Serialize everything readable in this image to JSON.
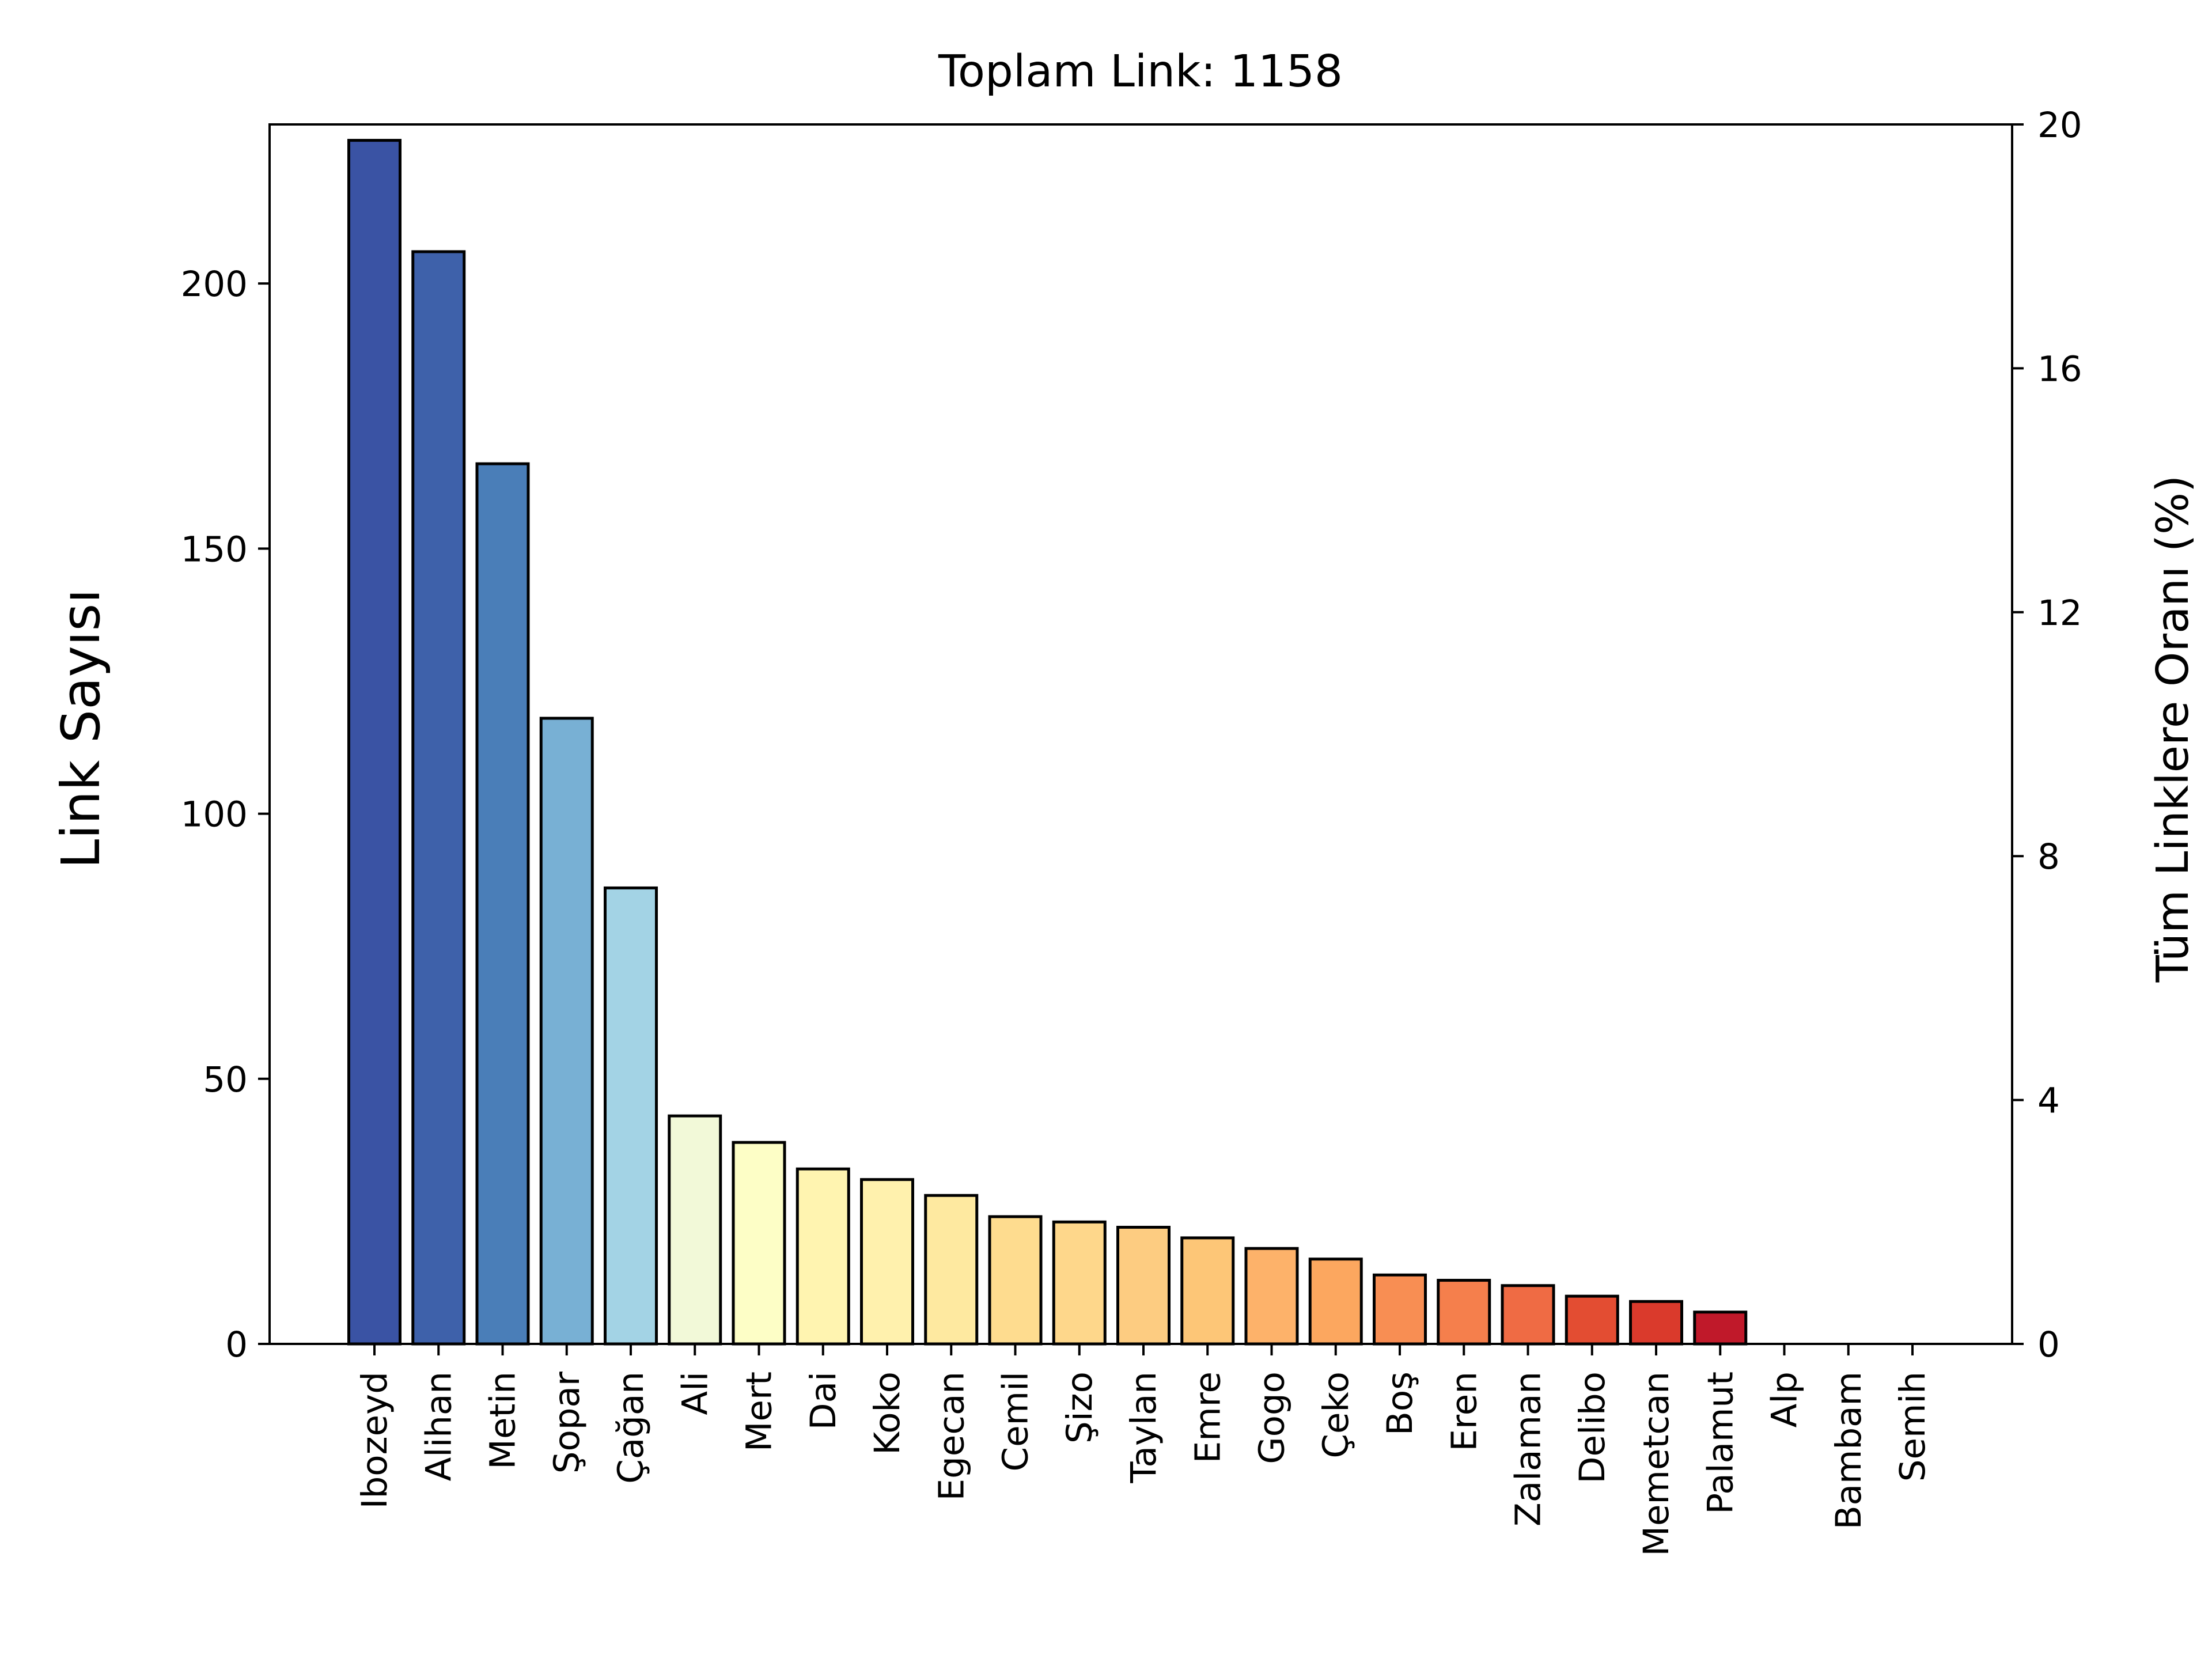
{
  "chart_data": {
    "type": "bar",
    "title": "Toplam Link: 1158",
    "ylabel": "Link Sayısı",
    "ylabel_right": "Tüm Linklere Oranı (%)",
    "xlabel": "",
    "ylim": [
      0,
      230
    ],
    "ylim_right": [
      0,
      20
    ],
    "yticks": [
      0,
      50,
      100,
      150,
      200
    ],
    "yticks_right": [
      0,
      4,
      8,
      12,
      16,
      20
    ],
    "grid": false,
    "legend": "none",
    "bar_edge_color": "#000000",
    "categories": [
      "Ibozeyd",
      "Alihan",
      "Metin",
      "Şopar",
      "Çağan",
      "Ali",
      "Mert",
      "Dai",
      "Koko",
      "Egecan",
      "Cemil",
      "Şizo",
      "Taylan",
      "Emre",
      "Gogo",
      "Çeko",
      "Boş",
      "Eren",
      "Zalaman",
      "Delibo",
      "Memetcan",
      "Palamut",
      "Alp",
      "Bambam",
      "Semih"
    ],
    "values": [
      227,
      206,
      166,
      118,
      86,
      43,
      38,
      33,
      31,
      28,
      24,
      23,
      22,
      20,
      18,
      16,
      13,
      12,
      11,
      9,
      8,
      6,
      0,
      0,
      0
    ],
    "colors": [
      "#3a53a4",
      "#3e61aa",
      "#4a7eb8",
      "#78b0d4",
      "#a3d3e5",
      "#f2f9d8",
      "#fdfec6",
      "#fff4b0",
      "#fff1ad",
      "#fee9a0",
      "#fedc8f",
      "#fed78b",
      "#fdcc81",
      "#fdc677",
      "#fdb26a",
      "#fca75f",
      "#f88e53",
      "#f57f4c",
      "#ef6b44",
      "#e34d32",
      "#da3a2c",
      "#c0192a",
      "#a50026",
      "#a50026",
      "#a50026"
    ]
  }
}
